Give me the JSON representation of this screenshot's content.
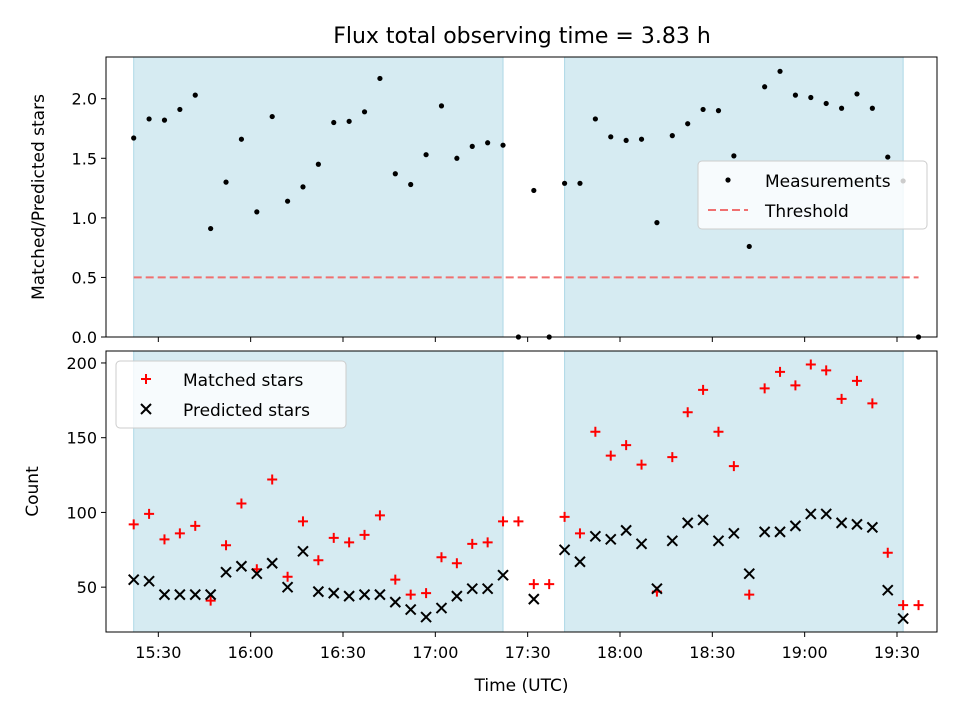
{
  "title": "Flux total observing time = 3.83 h",
  "colors": {
    "shade": "#add8e6",
    "measurement": "#000000",
    "threshold": "#f07070",
    "matched": "#ff0000",
    "predicted": "#000000"
  },
  "chart_data": [
    {
      "type": "scatter",
      "panel": "top",
      "title": "Flux total observing time = 3.83 h",
      "xlabel": "",
      "ylabel": "Matched/Predicted stars",
      "xlim": [
        "15:13",
        "19:43"
      ],
      "ylim": [
        0,
        2.35
      ],
      "yticks": [
        0.0,
        0.5,
        1.0,
        1.5,
        2.0
      ],
      "ytick_labels": [
        "0.0",
        "0.5",
        "1.0",
        "1.5",
        "2.0"
      ],
      "legend": {
        "placement": "right",
        "entries": [
          "Measurements",
          "Threshold"
        ]
      },
      "shaded_ranges": [
        [
          "15:22",
          "17:22"
        ],
        [
          "17:42",
          "19:32"
        ]
      ],
      "threshold": {
        "name": "Threshold",
        "value": 0.5,
        "x_range": [
          "15:22",
          "19:37"
        ]
      },
      "series": [
        {
          "name": "Measurements",
          "points": [
            [
              "15:22",
              1.67
            ],
            [
              "15:27",
              1.83
            ],
            [
              "15:32",
              1.82
            ],
            [
              "15:37",
              1.91
            ],
            [
              "15:42",
              2.03
            ],
            [
              "15:47",
              0.91
            ],
            [
              "15:52",
              1.3
            ],
            [
              "15:57",
              1.66
            ],
            [
              "16:02",
              1.05
            ],
            [
              "16:07",
              1.85
            ],
            [
              "16:12",
              1.14
            ],
            [
              "16:17",
              1.26
            ],
            [
              "16:22",
              1.45
            ],
            [
              "16:27",
              1.8
            ],
            [
              "16:32",
              1.81
            ],
            [
              "16:37",
              1.89
            ],
            [
              "16:42",
              2.17
            ],
            [
              "16:47",
              1.37
            ],
            [
              "16:52",
              1.28
            ],
            [
              "16:57",
              1.53
            ],
            [
              "17:02",
              1.94
            ],
            [
              "17:07",
              1.5
            ],
            [
              "17:12",
              1.6
            ],
            [
              "17:17",
              1.63
            ],
            [
              "17:22",
              1.61
            ],
            [
              "17:27",
              0.0
            ],
            [
              "17:32",
              1.23
            ],
            [
              "17:37",
              0.0
            ],
            [
              "17:42",
              1.29
            ],
            [
              "17:47",
              1.29
            ],
            [
              "17:52",
              1.83
            ],
            [
              "17:57",
              1.68
            ],
            [
              "18:02",
              1.65
            ],
            [
              "18:07",
              1.66
            ],
            [
              "18:12",
              0.96
            ],
            [
              "18:17",
              1.69
            ],
            [
              "18:22",
              1.79
            ],
            [
              "18:27",
              1.91
            ],
            [
              "18:32",
              1.9
            ],
            [
              "18:37",
              1.52
            ],
            [
              "18:42",
              0.76
            ],
            [
              "18:47",
              2.1
            ],
            [
              "18:52",
              2.23
            ],
            [
              "18:57",
              2.03
            ],
            [
              "19:02",
              2.01
            ],
            [
              "19:07",
              1.96
            ],
            [
              "19:12",
              1.92
            ],
            [
              "19:17",
              2.04
            ],
            [
              "19:22",
              1.92
            ],
            [
              "19:27",
              1.51
            ],
            [
              "19:32",
              1.31
            ],
            [
              "19:37",
              0.0
            ]
          ]
        }
      ]
    },
    {
      "type": "scatter",
      "panel": "bottom",
      "xlabel": "Time (UTC)",
      "ylabel": "Count",
      "xlim": [
        "15:13",
        "19:43"
      ],
      "ylim": [
        20,
        208
      ],
      "xticks": [
        "15:30",
        "16:00",
        "16:30",
        "17:00",
        "17:30",
        "18:00",
        "18:30",
        "19:00",
        "19:30"
      ],
      "yticks": [
        50,
        100,
        150,
        200
      ],
      "ytick_labels": [
        "50",
        "100",
        "150",
        "200"
      ],
      "legend": {
        "placement": "top-left",
        "entries": [
          "Matched stars",
          "Predicted stars"
        ]
      },
      "shaded_ranges": [
        [
          "15:22",
          "17:22"
        ],
        [
          "17:42",
          "19:32"
        ]
      ],
      "series": [
        {
          "name": "Matched stars",
          "marker": "plus",
          "points": [
            [
              "15:22",
              92
            ],
            [
              "15:27",
              99
            ],
            [
              "15:32",
              82
            ],
            [
              "15:37",
              86
            ],
            [
              "15:42",
              91
            ],
            [
              "15:47",
              41
            ],
            [
              "15:52",
              78
            ],
            [
              "15:57",
              106
            ],
            [
              "16:02",
              62
            ],
            [
              "16:07",
              122
            ],
            [
              "16:12",
              57
            ],
            [
              "16:17",
              94
            ],
            [
              "16:22",
              68
            ],
            [
              "16:27",
              83
            ],
            [
              "16:32",
              80
            ],
            [
              "16:37",
              85
            ],
            [
              "16:42",
              98
            ],
            [
              "16:47",
              55
            ],
            [
              "16:52",
              45
            ],
            [
              "16:57",
              46
            ],
            [
              "17:02",
              70
            ],
            [
              "17:07",
              66
            ],
            [
              "17:12",
              79
            ],
            [
              "17:17",
              80
            ],
            [
              "17:22",
              94
            ],
            [
              "17:27",
              94
            ],
            [
              "17:32",
              52
            ],
            [
              "17:37",
              52
            ],
            [
              "17:42",
              97
            ],
            [
              "17:47",
              86
            ],
            [
              "17:52",
              154
            ],
            [
              "17:57",
              138
            ],
            [
              "18:02",
              145
            ],
            [
              "18:07",
              132
            ],
            [
              "18:12",
              47
            ],
            [
              "18:17",
              137
            ],
            [
              "18:22",
              167
            ],
            [
              "18:27",
              182
            ],
            [
              "18:32",
              154
            ],
            [
              "18:37",
              131
            ],
            [
              "18:42",
              45
            ],
            [
              "18:47",
              183
            ],
            [
              "18:52",
              194
            ],
            [
              "18:57",
              185
            ],
            [
              "19:02",
              199
            ],
            [
              "19:07",
              195
            ],
            [
              "19:12",
              176
            ],
            [
              "19:17",
              188
            ],
            [
              "19:22",
              173
            ],
            [
              "19:27",
              73
            ],
            [
              "19:32",
              38
            ],
            [
              "19:37",
              38
            ]
          ]
        },
        {
          "name": "Predicted stars",
          "marker": "x",
          "points": [
            [
              "15:22",
              55
            ],
            [
              "15:27",
              54
            ],
            [
              "15:32",
              45
            ],
            [
              "15:37",
              45
            ],
            [
              "15:42",
              45
            ],
            [
              "15:47",
              45
            ],
            [
              "15:52",
              60
            ],
            [
              "15:57",
              64
            ],
            [
              "16:02",
              59
            ],
            [
              "16:07",
              66
            ],
            [
              "16:12",
              50
            ],
            [
              "16:17",
              74
            ],
            [
              "16:22",
              47
            ],
            [
              "16:27",
              46
            ],
            [
              "16:32",
              44
            ],
            [
              "16:37",
              45
            ],
            [
              "16:42",
              45
            ],
            [
              "16:47",
              40
            ],
            [
              "16:52",
              35
            ],
            [
              "16:57",
              30
            ],
            [
              "17:02",
              36
            ],
            [
              "17:07",
              44
            ],
            [
              "17:12",
              49
            ],
            [
              "17:17",
              49
            ],
            [
              "17:22",
              58
            ],
            [
              "17:32",
              42
            ],
            [
              "17:42",
              75
            ],
            [
              "17:47",
              67
            ],
            [
              "17:52",
              84
            ],
            [
              "17:57",
              82
            ],
            [
              "18:02",
              88
            ],
            [
              "18:07",
              79
            ],
            [
              "18:12",
              49
            ],
            [
              "18:17",
              81
            ],
            [
              "18:22",
              93
            ],
            [
              "18:27",
              95
            ],
            [
              "18:32",
              81
            ],
            [
              "18:37",
              86
            ],
            [
              "18:42",
              59
            ],
            [
              "18:47",
              87
            ],
            [
              "18:52",
              87
            ],
            [
              "18:57",
              91
            ],
            [
              "19:02",
              99
            ],
            [
              "19:07",
              99
            ],
            [
              "19:12",
              93
            ],
            [
              "19:17",
              92
            ],
            [
              "19:22",
              90
            ],
            [
              "19:27",
              48
            ],
            [
              "19:32",
              29
            ]
          ]
        }
      ]
    }
  ]
}
